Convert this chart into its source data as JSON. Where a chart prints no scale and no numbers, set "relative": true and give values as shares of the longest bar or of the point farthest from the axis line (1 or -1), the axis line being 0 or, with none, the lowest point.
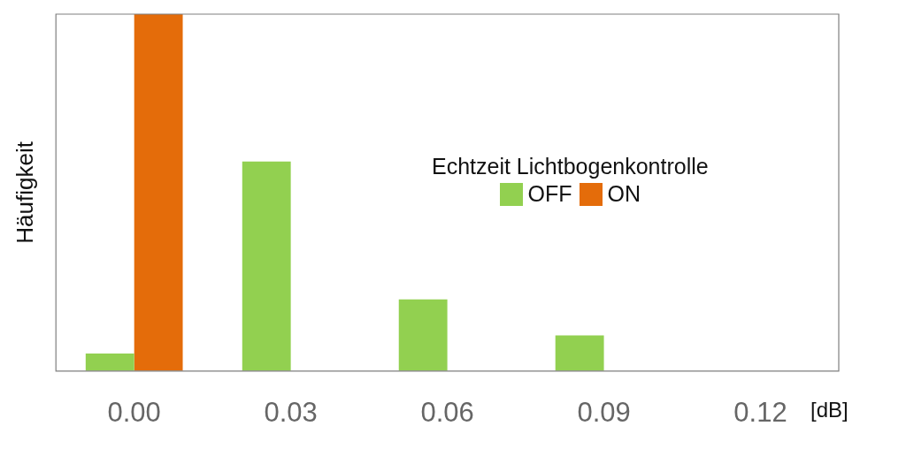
{
  "chart_data": {
    "type": "bar",
    "relative": true,
    "xlabel": "[dB]",
    "ylabel": "Häufigkeit",
    "legend_title": "Echtzeit Lichtbogenkontrolle",
    "legend": "right",
    "grid": false,
    "categories": [
      "0.00",
      "0.03",
      "0.06",
      "0.09",
      "0.12"
    ],
    "series": [
      {
        "name": "OFF",
        "color": "#92d050",
        "values": [
          0.049,
          0.587,
          0.201,
          0.1,
          0
        ]
      },
      {
        "name": "ON",
        "color": "#e46c0a",
        "values": [
          1,
          0,
          0,
          0,
          0
        ]
      }
    ]
  }
}
